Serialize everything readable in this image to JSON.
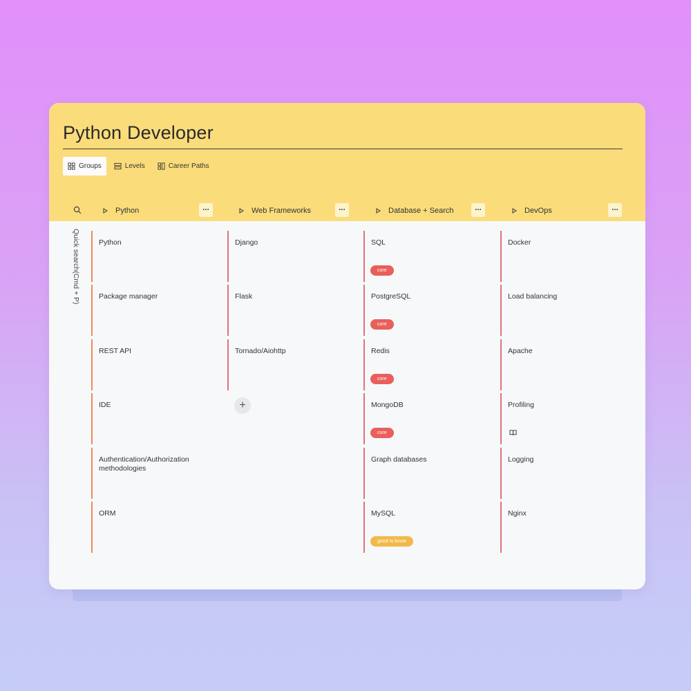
{
  "page": {
    "title": "Python Developer"
  },
  "view_tabs": [
    {
      "label": "Groups",
      "icon": "grid-icon",
      "active": true
    },
    {
      "label": "Levels",
      "icon": "rows-icon",
      "active": false
    },
    {
      "label": "Career Paths",
      "icon": "paths-icon",
      "active": false
    }
  ],
  "search": {
    "vertical_label": "Quick search(Cmd + P)"
  },
  "columns": [
    {
      "title": "Python",
      "more": "···",
      "cells": [
        {
          "label": "Python",
          "border": "orange"
        },
        {
          "label": "Package manager",
          "border": "orange"
        },
        {
          "label": "REST API",
          "border": "orange"
        },
        {
          "label": "IDE",
          "border": "orange"
        },
        {
          "label": "Authentication/Authorization methodologies",
          "border": "orange"
        },
        {
          "label": "ORM",
          "border": "orange"
        }
      ]
    },
    {
      "title": "Web Frameworks",
      "more": "···",
      "cells": [
        {
          "label": "Django",
          "border": "red"
        },
        {
          "label": "Flask",
          "border": "red"
        },
        {
          "label": "Tornado/Aiohttp",
          "border": "red"
        }
      ],
      "add_button": "+"
    },
    {
      "title": "Database + Search",
      "more": "···",
      "cells": [
        {
          "label": "SQL",
          "border": "red",
          "badge": "core"
        },
        {
          "label": "PostgreSQL",
          "border": "red",
          "badge": "core"
        },
        {
          "label": "Redis",
          "border": "red",
          "badge": "core"
        },
        {
          "label": "MongoDB",
          "border": "red",
          "badge": "core"
        },
        {
          "label": "Graph databases",
          "border": "red"
        },
        {
          "label": "MySQL",
          "border": "red",
          "badge": "good to know"
        }
      ]
    },
    {
      "title": "DevOps",
      "more": "···",
      "cells": [
        {
          "label": "Docker",
          "border": "red"
        },
        {
          "label": "Load balancing",
          "border": "red"
        },
        {
          "label": "Apache",
          "border": "red"
        },
        {
          "label": "Profiling",
          "border": "red",
          "icon": "book-icon"
        },
        {
          "label": "Logging",
          "border": "red"
        },
        {
          "label": "Nginx",
          "border": "red"
        }
      ]
    }
  ],
  "colors": {
    "header_bg": "#fadc7b",
    "core_badge": "#e85f5c",
    "good_to_know_badge": "#f2b94a",
    "red_border": "#e2707a",
    "orange_border": "#ef8a5c"
  }
}
